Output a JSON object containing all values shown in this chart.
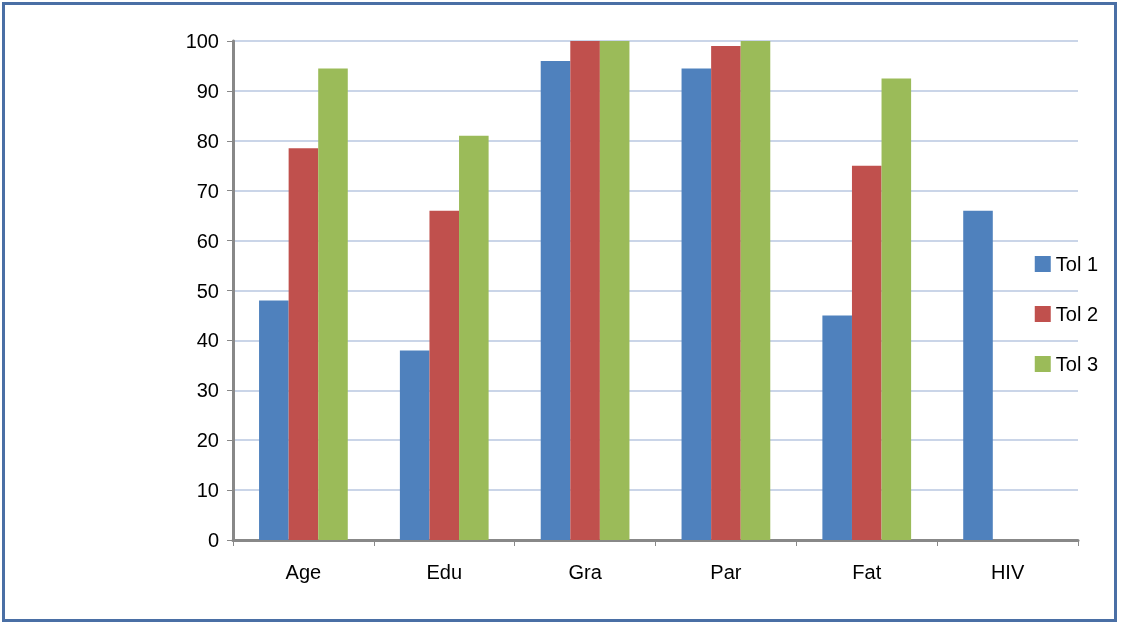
{
  "chart_data": {
    "type": "bar",
    "categories": [
      "Age",
      "Edu",
      "Gra",
      "Par",
      "Fat",
      "HIV"
    ],
    "series": [
      {
        "name": "Tol 1",
        "color": "#4f81bd",
        "values": [
          48,
          38,
          96,
          94.5,
          45,
          66
        ]
      },
      {
        "name": "Tol 2",
        "color": "#c0504d",
        "values": [
          78.5,
          66,
          100,
          99,
          75,
          null
        ]
      },
      {
        "name": "Tol 3",
        "color": "#9bbb59",
        "values": [
          94.5,
          81,
          100,
          100,
          92.5,
          null
        ]
      }
    ],
    "ylim": [
      0,
      100
    ],
    "yticks": [
      0,
      10,
      20,
      30,
      40,
      50,
      60,
      70,
      80,
      90,
      100
    ],
    "grid": "y",
    "legend": "right"
  }
}
